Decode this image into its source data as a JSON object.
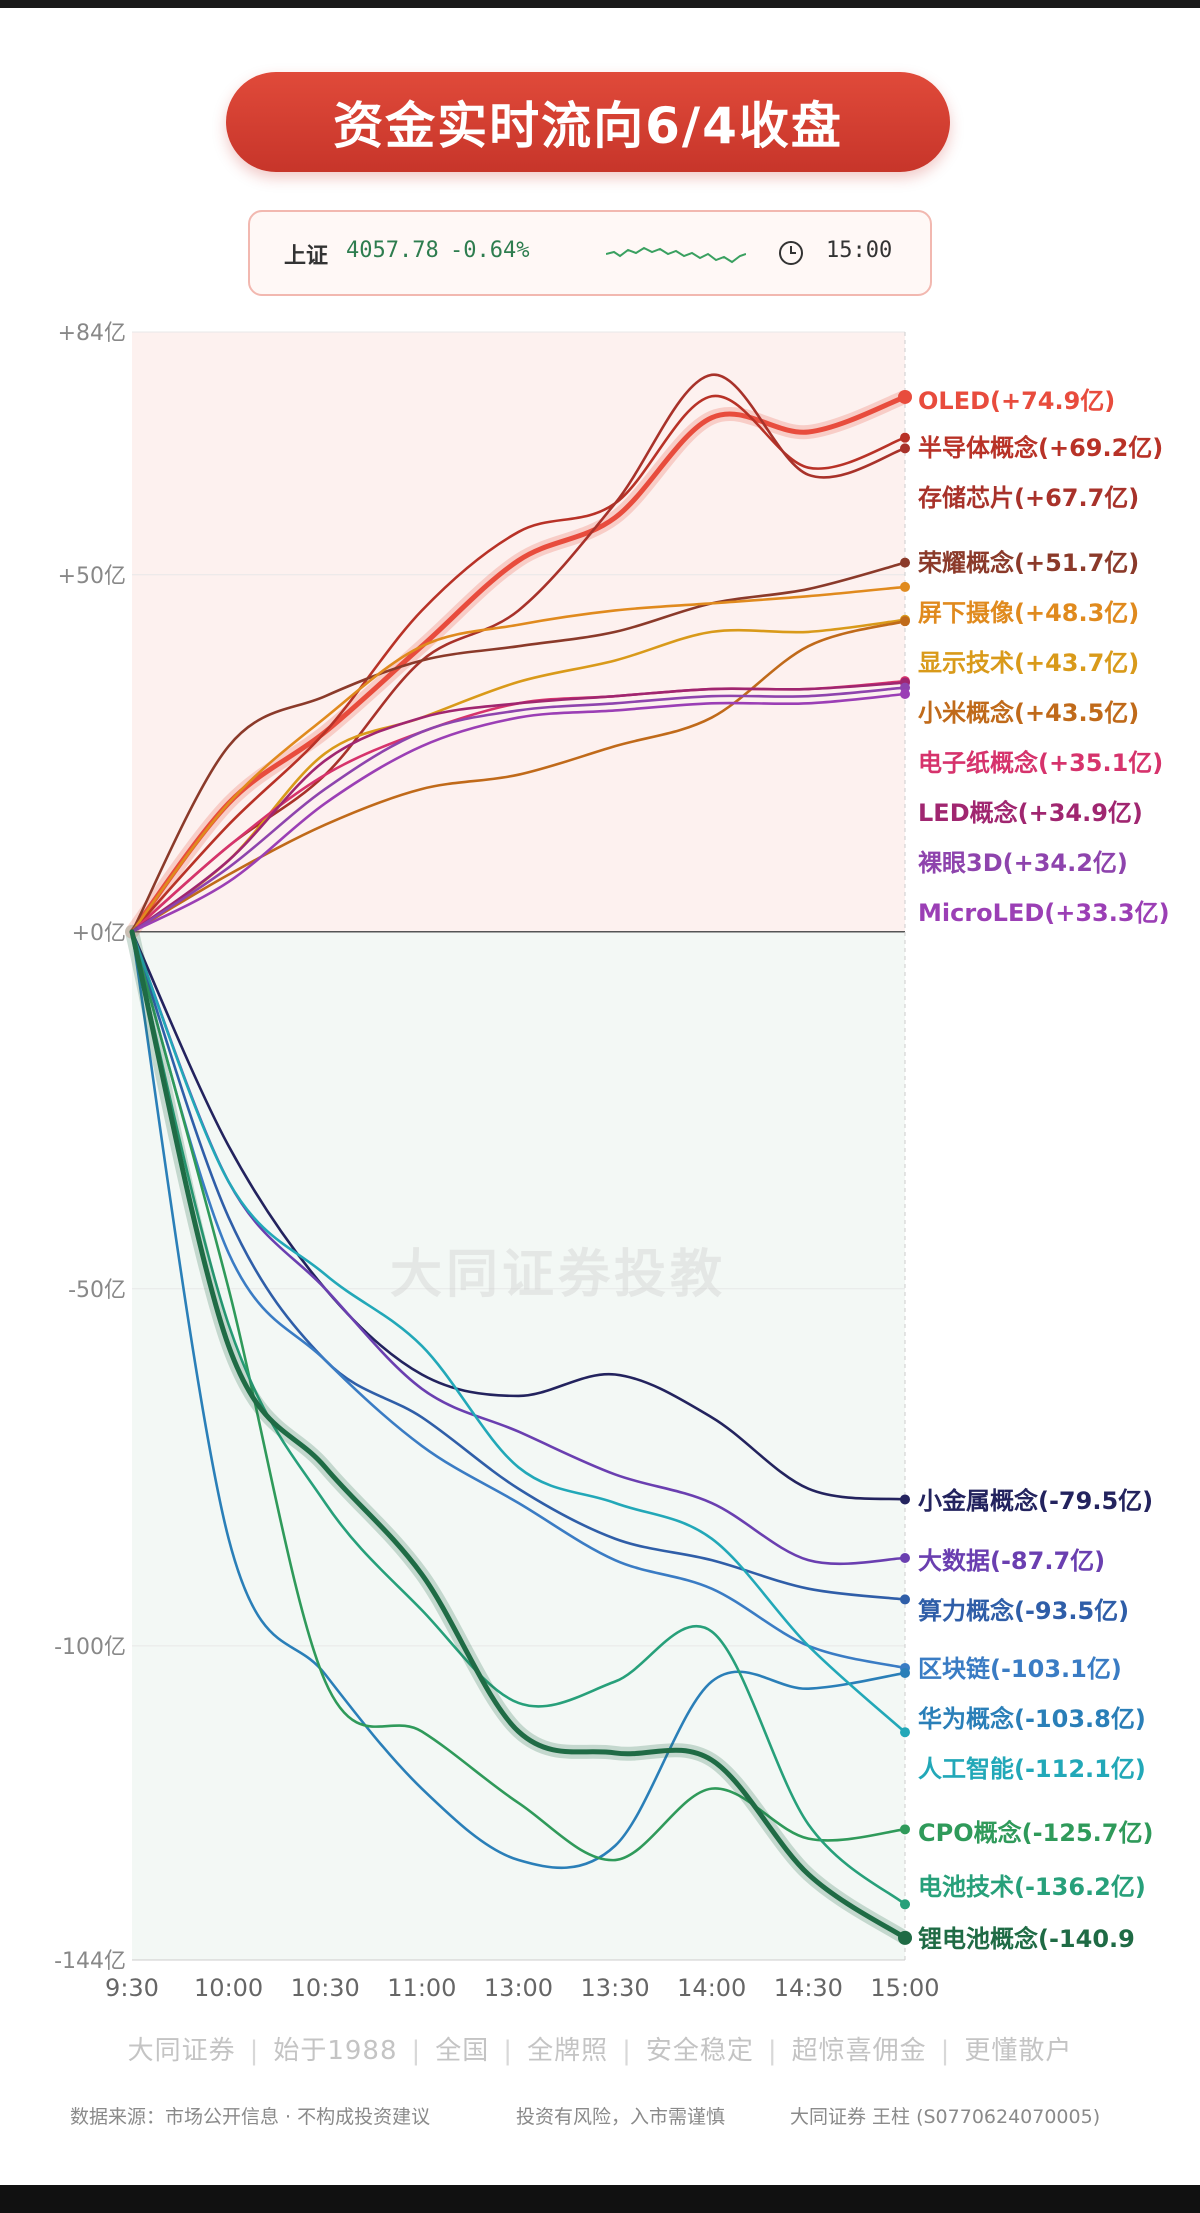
{
  "title": "资金实时流向6/4收盘",
  "index": {
    "name": "上证",
    "value": "4057.78",
    "change": "-0.64%",
    "time": "15:00"
  },
  "watermark": "大同证券投教",
  "footer": {
    "slogans": [
      "大同证券",
      "始于1988",
      "全国",
      "全牌照",
      "安全稳定",
      "超惊喜佣金",
      "更懂散户"
    ],
    "source": "数据来源：市场公开信息 · 不构成投资建议",
    "risk": "投资有风险，入市需谨慎",
    "advisor": "大同证券 王柱 (S0770624070005)"
  },
  "colors": {
    "accent": "#d63d2f",
    "positive": "#c0392b",
    "negative": "#2e7d4f"
  },
  "chart_data": {
    "type": "line",
    "y_unit": "亿",
    "ylim": [
      -144,
      84
    ],
    "yticks": [
      84,
      50,
      0,
      -50,
      -100,
      -144
    ],
    "ytick_labels": [
      "+84亿",
      "+50亿",
      "+0亿",
      "-50亿",
      "-100亿",
      "-144亿"
    ],
    "x": [
      "9:30",
      "10:00",
      "10:30",
      "11:00",
      "13:00",
      "13:30",
      "14:00",
      "14:30",
      "15:00"
    ],
    "grid": true,
    "legend": "right, end-of-line labels",
    "series": [
      {
        "name": "OLED",
        "label": "(+74.9亿)",
        "color": "#e84c3d",
        "highlight": true,
        "values": [
          0,
          18,
          28,
          40,
          52,
          58,
          72,
          70,
          74.9
        ]
      },
      {
        "name": "半导体概念",
        "label": "(+69.2亿)",
        "color": "#b83227",
        "values": [
          0,
          15,
          28,
          45,
          56,
          60,
          75,
          65,
          69.2
        ]
      },
      {
        "name": "存储芯片",
        "label": "(+67.7亿)",
        "color": "#a8322a",
        "values": [
          0,
          12,
          22,
          38,
          45,
          60,
          78,
          64,
          67.7
        ]
      },
      {
        "name": "荣耀概念",
        "label": "(+51.7亿)",
        "color": "#8b3a2a",
        "values": [
          0,
          26,
          33,
          38,
          40,
          42,
          46,
          48,
          51.7
        ]
      },
      {
        "name": "屏下摄像",
        "label": "(+48.3亿)",
        "color": "#e08a1e",
        "values": [
          0,
          18,
          30,
          40,
          43,
          45,
          46,
          47,
          48.3
        ]
      },
      {
        "name": "显示技术",
        "label": "(+43.7亿)",
        "color": "#d99a1a",
        "values": [
          0,
          10,
          25,
          30,
          35,
          38,
          42,
          42,
          43.7
        ]
      },
      {
        "name": "小米概念",
        "label": "(+43.5亿)",
        "color": "#c06a1a",
        "values": [
          0,
          8,
          15,
          20,
          22,
          26,
          30,
          40,
          43.5
        ]
      },
      {
        "name": "电子纸概念",
        "label": "(+35.1亿)",
        "color": "#d6336c",
        "values": [
          0,
          12,
          22,
          28,
          32,
          33,
          34,
          34,
          35.1
        ]
      },
      {
        "name": "LED概念",
        "label": "(+34.9亿)",
        "color": "#a02670",
        "values": [
          0,
          10,
          24,
          30,
          32,
          33,
          34,
          34,
          34.9
        ]
      },
      {
        "name": "裸眼3D",
        "label": "(+34.2亿)",
        "color": "#8e44ad",
        "values": [
          0,
          9,
          20,
          28,
          31,
          32,
          33,
          33,
          34.2
        ]
      },
      {
        "name": "MicroLED",
        "label": "(+33.3亿)",
        "color": "#9b3fb5",
        "values": [
          0,
          7,
          18,
          26,
          30,
          31,
          32,
          32,
          33.3
        ]
      },
      {
        "name": "小金属概念",
        "label": "(-79.5亿)",
        "color": "#23235e",
        "values": [
          0,
          -30,
          -50,
          -62,
          -65,
          -62,
          -68,
          -78,
          -79.5
        ]
      },
      {
        "name": "大数据",
        "label": "(-87.7亿)",
        "color": "#6a3fb0",
        "values": [
          0,
          -35,
          -50,
          -64,
          -70,
          -76,
          -80,
          -88,
          -87.7
        ]
      },
      {
        "name": "算力概念",
        "label": "(-93.5亿)",
        "color": "#2f5ea8",
        "values": [
          0,
          -40,
          -60,
          -68,
          -78,
          -85,
          -88,
          -92,
          -93.5
        ]
      },
      {
        "name": "区块链",
        "label": "(-103.1亿)",
        "color": "#3a7cc4",
        "values": [
          0,
          -45,
          -60,
          -72,
          -80,
          -88,
          -92,
          -100,
          -103.1
        ]
      },
      {
        "name": "华为概念",
        "label": "(-103.8亿)",
        "color": "#2a7fb8",
        "values": [
          0,
          -85,
          -104,
          -120,
          -130,
          -128,
          -105,
          -106,
          -103.8
        ]
      },
      {
        "name": "人工智能",
        "label": "(-112.1亿)",
        "color": "#22a8b8",
        "values": [
          0,
          -35,
          -48,
          -58,
          -75,
          -80,
          -85,
          -100,
          -112.1
        ]
      },
      {
        "name": "CPO概念",
        "label": "(-125.7亿)",
        "color": "#2f9a5a",
        "values": [
          0,
          -50,
          -105,
          -112,
          -122,
          -130,
          -120,
          -127,
          -125.7
        ]
      },
      {
        "name": "电池技术",
        "label": "(-136.2亿)",
        "color": "#27a07a",
        "values": [
          0,
          -55,
          -80,
          -95,
          -108,
          -105,
          -98,
          -125,
          -136.2
        ]
      },
      {
        "name": "锂电池概念",
        "label": "(-140.9",
        "color": "#1f6b45",
        "highlight": true,
        "values": [
          0,
          -58,
          -75,
          -90,
          -112,
          -115,
          -116,
          -132,
          -140.9
        ]
      }
    ]
  }
}
